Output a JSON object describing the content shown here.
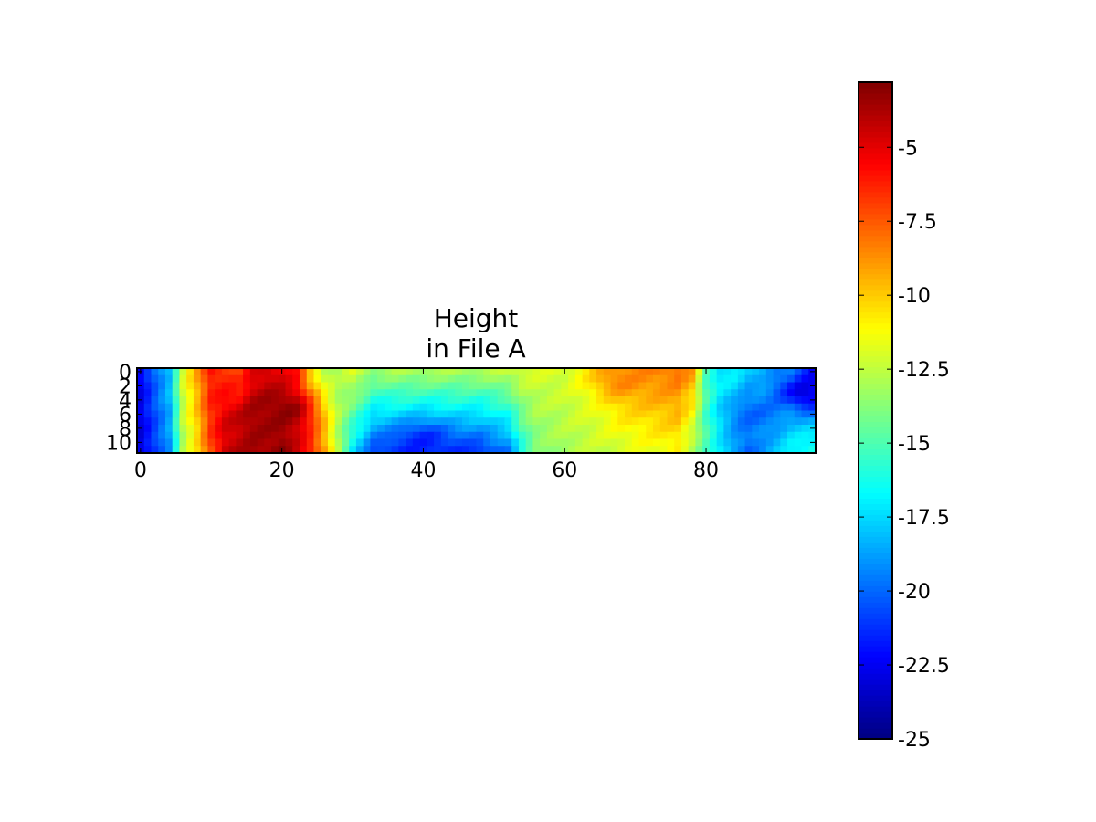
{
  "chart_data": {
    "type": "heatmap",
    "title": "Height\nin File A",
    "title_lines": [
      "Height",
      "in File A"
    ],
    "xlabel": "",
    "ylabel": "",
    "xlim": [
      -0.5,
      95.5
    ],
    "ylim": [
      11.5,
      -0.5
    ],
    "xticks": [
      0,
      20,
      40,
      60,
      80
    ],
    "yticks": [
      0,
      2,
      4,
      6,
      8,
      10
    ],
    "colormap": "jet",
    "colorbar": {
      "range": [
        -25,
        -2.8
      ],
      "ticks": [
        -5,
        -7.5,
        -10,
        -12.5,
        -15,
        -17.5,
        -20,
        -22.5,
        -25
      ],
      "tick_labels": [
        "-5",
        "-7.5",
        "-10",
        "-12.5",
        "-15",
        "-17.5",
        "-20",
        "-22.5",
        "-25"
      ]
    },
    "grid": false,
    "grid_shape": {
      "rows": 12,
      "cols": 96
    },
    "column_profile": {
      "x": [
        0,
        2,
        4,
        6,
        8,
        10,
        12,
        14,
        16,
        18,
        20,
        22,
        24,
        26,
        28,
        30,
        33,
        36,
        40,
        44,
        48,
        52,
        54,
        56,
        60,
        64,
        68,
        72,
        76,
        78,
        80,
        82,
        84,
        86,
        88,
        90,
        92,
        95
      ],
      "top": [
        -22.5,
        -20,
        -18,
        -12,
        -9,
        -6,
        -6.5,
        -7,
        -5,
        -4.5,
        -5,
        -6,
        -10,
        -12.5,
        -13,
        -12,
        -13.5,
        -13,
        -13,
        -13,
        -13,
        -12.5,
        -12,
        -12,
        -12,
        -11,
        -9,
        -8.5,
        -8,
        -9,
        -15,
        -17,
        -17,
        -18,
        -18,
        -19,
        -19,
        -22
      ],
      "bottom": [
        -23,
        -21,
        -19,
        -13,
        -10.5,
        -7,
        -4.5,
        -4,
        -3.5,
        -3.5,
        -3,
        -4.5,
        -6,
        -9,
        -13,
        -17,
        -20.5,
        -21,
        -21.5,
        -21,
        -21,
        -19.5,
        -16,
        -14,
        -13,
        -12.5,
        -12,
        -11.5,
        -11,
        -13,
        -15,
        -17,
        -19,
        -20,
        -19,
        -18,
        -17,
        -16
      ]
    },
    "hotspots": [
      {
        "x": 20,
        "y": 5.5,
        "value": -3
      },
      {
        "x": 17,
        "y": 7,
        "value": -3.5
      },
      {
        "x": 68,
        "y": 1,
        "value": -8.5
      },
      {
        "x": 40,
        "y": 10,
        "value": -21.5
      },
      {
        "x": 94,
        "y": 3,
        "value": -23
      },
      {
        "x": 87,
        "y": 6,
        "value": -20
      }
    ]
  }
}
